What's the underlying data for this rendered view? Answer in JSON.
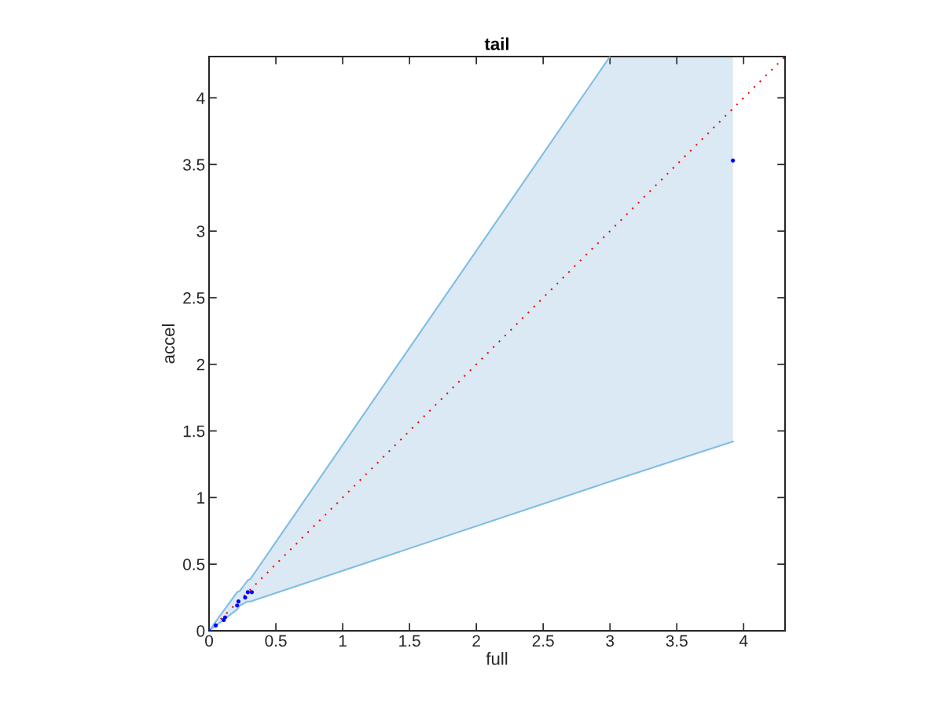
{
  "chart_data": {
    "type": "scatter",
    "title": "tail",
    "xlabel": "full",
    "ylabel": "accel",
    "xlim": [
      0,
      4.31
    ],
    "ylim": [
      0,
      4.31
    ],
    "xticks": [
      0,
      0.5,
      1,
      1.5,
      2,
      2.5,
      3,
      3.5,
      4
    ],
    "yticks": [
      0,
      0.5,
      1,
      1.5,
      2,
      2.5,
      3,
      3.5,
      4
    ],
    "grid": false,
    "legend": false,
    "series": [
      {
        "type": "line",
        "color": "#dae9f4",
        "x": [
          0,
          0.21,
          0.23,
          0.29,
          0.31,
          3.0,
          3.92
        ],
        "values": [
          null,
          null,
          null,
          null,
          null,
          null,
          null
        ],
        "lower": [
          0,
          0.16,
          0.19,
          0.22,
          0.22,
          1.12,
          1.42
        ],
        "upper": [
          0,
          0.29,
          0.3,
          0.38,
          0.39,
          4.31,
          4.31
        ]
      },
      {
        "type": "line",
        "color": "#80bde3",
        "line_style": "solid",
        "marker": "none",
        "x": [
          0,
          0.21,
          0.23,
          0.29,
          0.31,
          3.0,
          3.92
        ],
        "values": [
          0,
          0.16,
          0.19,
          0.22,
          0.22,
          1.12,
          1.42
        ]
      },
      {
        "type": "line",
        "color": "#80bde3",
        "line_style": "solid",
        "marker": "none",
        "x": [
          0,
          0.21,
          0.23,
          0.29,
          0.31,
          3.0
        ],
        "values": [
          0,
          0.29,
          0.3,
          0.38,
          0.39,
          4.31
        ]
      },
      {
        "type": "line",
        "color": "#ff0000",
        "line_style": "dotted",
        "marker": "none",
        "x": [
          0,
          4.31
        ],
        "values": [
          0,
          4.31
        ]
      },
      {
        "color": "#0000ff",
        "marker": "circle",
        "x": [
          0,
          0.05,
          0.11,
          0.12,
          0.21,
          0.22,
          0.27,
          0.29,
          0.32,
          3.92
        ],
        "values": [
          0,
          0.04,
          0.08,
          0.1,
          0.19,
          0.22,
          0.25,
          0.29,
          0.29,
          3.53
        ]
      }
    ]
  }
}
